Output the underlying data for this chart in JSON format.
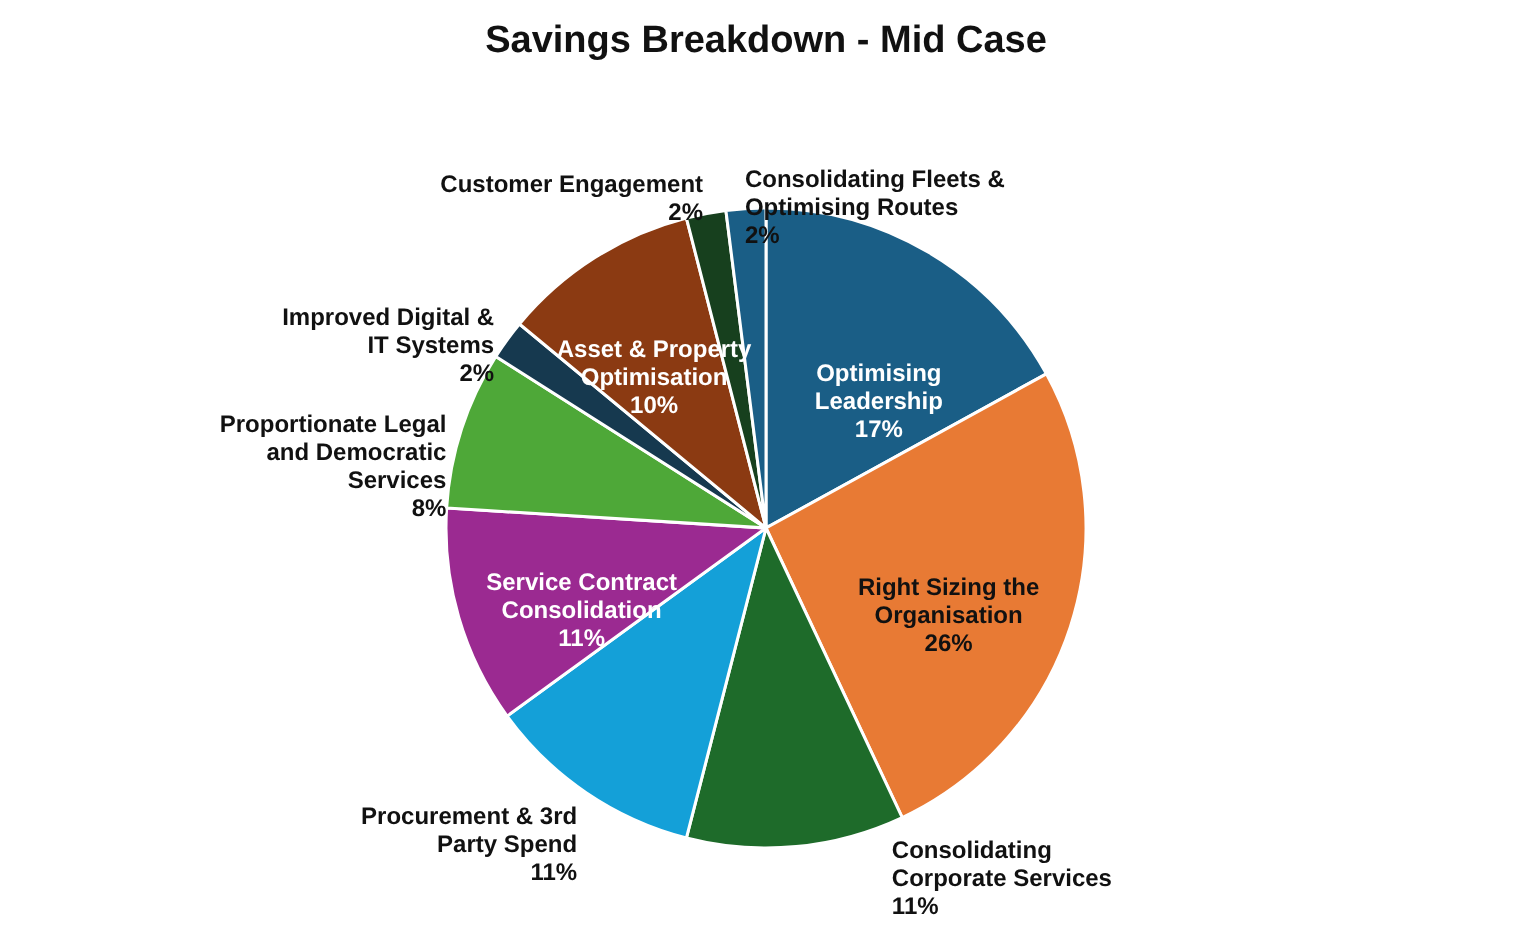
{
  "chart_data": {
    "type": "pie",
    "title": "Savings Breakdown - Mid Case",
    "categories": [
      "Optimising Leadership",
      "Right Sizing the Organisation",
      "Consolidating Corporate Services",
      "Procurement & 3rd Party Spend",
      "Service Contract Consolidation",
      "Proportionate Legal and Democratic Services",
      "Improved Digital & IT Systems",
      "Asset & Property Optimisation",
      "Customer Engagement",
      "Consolidating Fleets & Optimising Routes"
    ],
    "values": [
      17,
      26,
      11,
      11,
      11,
      8,
      2,
      10,
      2,
      2
    ],
    "value_labels": [
      "17%",
      "26%",
      "11%",
      "11%",
      "11%",
      "8%",
      "2%",
      "10%",
      "2%",
      "2%"
    ],
    "colors": [
      "#1a5e86",
      "#e87a34",
      "#1e6b2a",
      "#14a0d8",
      "#9b2a91",
      "#4ea838",
      "#16394f",
      "#8b3a12",
      "#17401e",
      "#1a5e86"
    ],
    "legend": false
  }
}
